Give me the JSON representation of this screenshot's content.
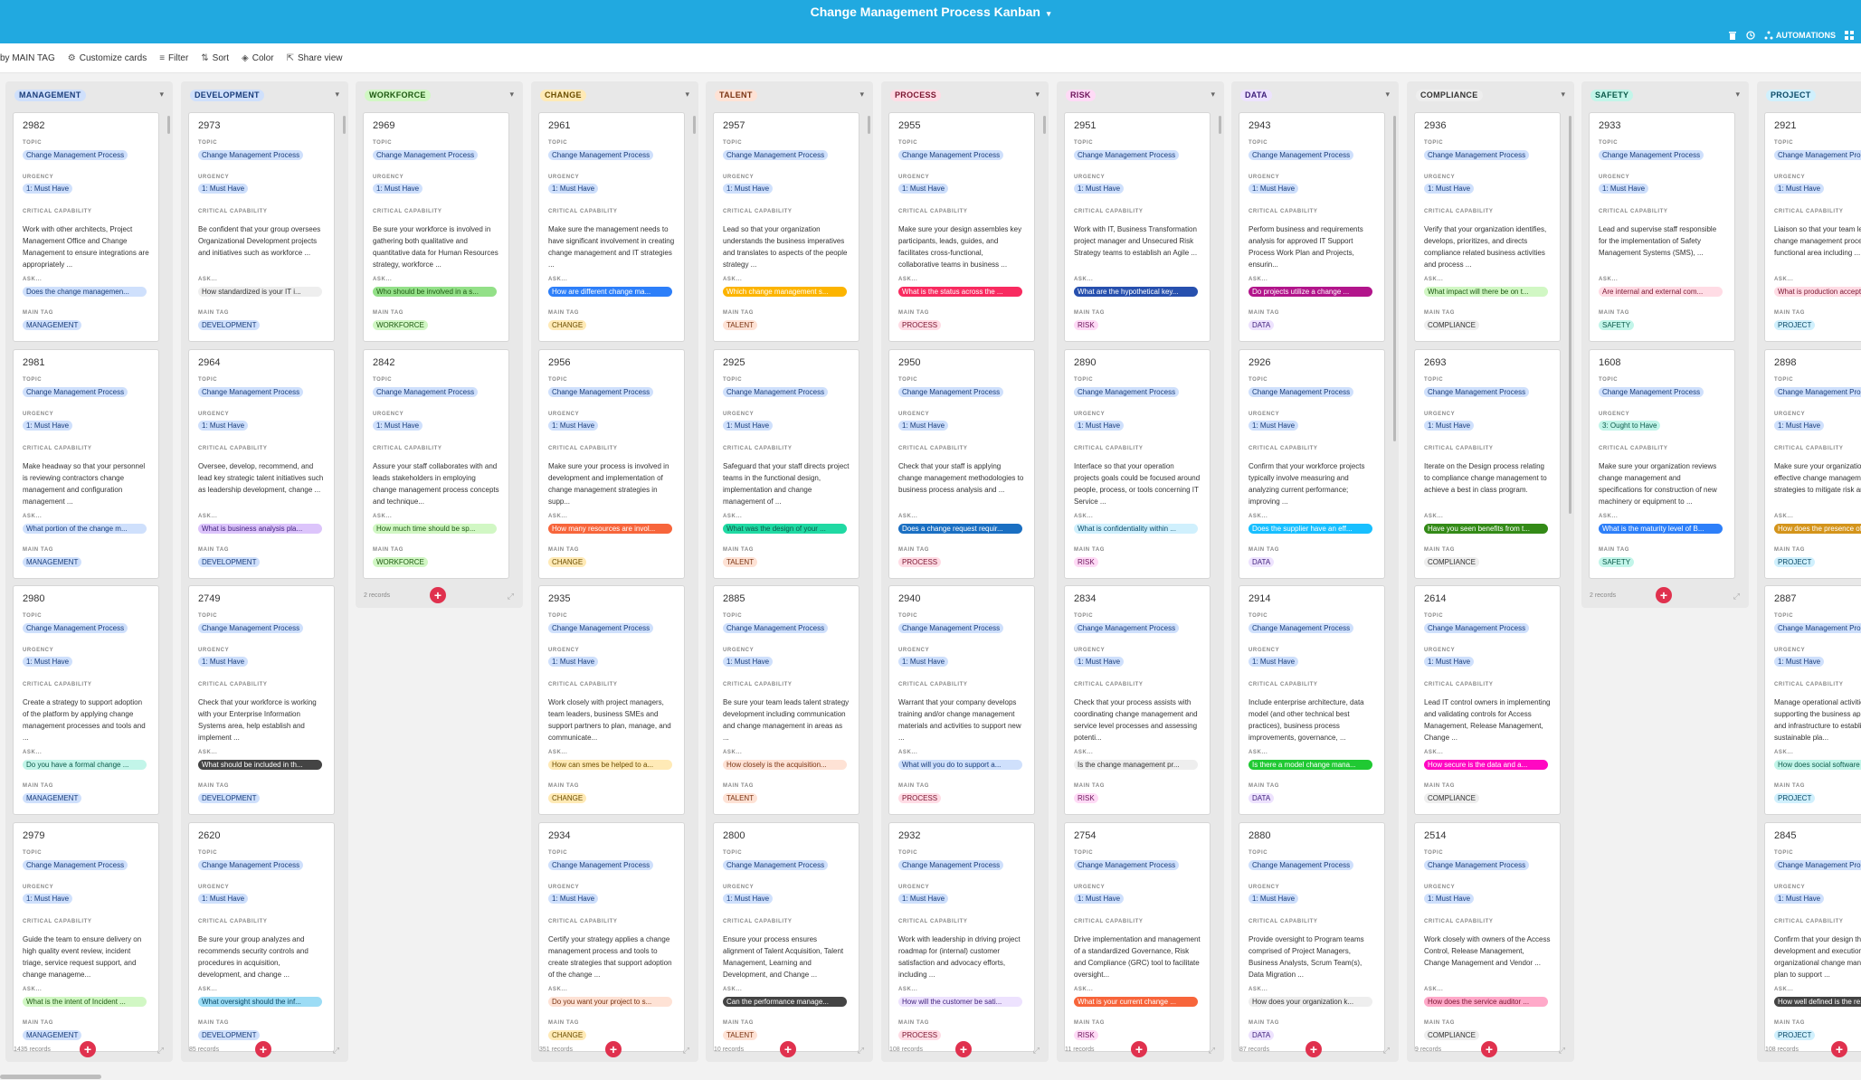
{
  "header": {
    "title": "Change Management Process Kanban",
    "title_caret": "▾",
    "automations_label": "AUTOMATIONS"
  },
  "toolbar": [
    {
      "icon": "group-icon",
      "label": "by MAIN TAG"
    },
    {
      "icon": "settings-icon",
      "label": "Customize cards"
    },
    {
      "icon": "filter-icon",
      "label": "Filter"
    },
    {
      "icon": "sort-icon",
      "label": "Sort"
    },
    {
      "icon": "paint-icon",
      "label": "Color"
    },
    {
      "icon": "share-icon",
      "label": "Share view"
    }
  ],
  "field_labels": {
    "topic": "TOPIC",
    "urgency": "URGENCY",
    "capability": "CRITICAL CAPABILITY",
    "ask": "ASK...",
    "main_tag": "MAIN TAG"
  },
  "colors": {
    "MANAGEMENT": {
      "bg": "#cfe0fc",
      "fg": "#1a3d7a"
    },
    "DEVELOPMENT": {
      "bg": "#cfe0fc",
      "fg": "#1a3d7a"
    },
    "WORKFORCE": {
      "bg": "#d1f7c4",
      "fg": "#1e5a12"
    },
    "CHANGE": {
      "bg": "#ffeab6",
      "fg": "#6b4e00"
    },
    "TALENT": {
      "bg": "#fee2d5",
      "fg": "#7a3413"
    },
    "PROCESS": {
      "bg": "#ffdce5",
      "fg": "#7a1530"
    },
    "RISK": {
      "bg": "#ffdaf6",
      "fg": "#6b1259"
    },
    "DATA": {
      "bg": "#ede2fe",
      "fg": "#3e1f7a"
    },
    "COMPLIANCE": {
      "bg": "#eeeeee",
      "fg": "#333333"
    },
    "SAFETY": {
      "bg": "#c2f5e9",
      "fg": "#0c5a4a"
    },
    "PROJECT": {
      "bg": "#d0f0fd",
      "fg": "#0b4a66"
    }
  },
  "columns": [
    {
      "tag": "MANAGEMENT",
      "records": "1435 records",
      "scroll_top": 0,
      "cards": [
        {
          "num": "2982",
          "topic": "Change Management Process",
          "urgency": "1: Must Have",
          "capability": "Work with other architects, Project Management Office and Change Management to ensure integrations are appropriately ...",
          "ask": "Does the change managemen...",
          "ask_bg": "#cfe0fc",
          "ask_fg": "#1a3d7a",
          "tag": "MANAGEMENT"
        },
        {
          "num": "2981",
          "topic": "Change Management Process",
          "urgency": "1: Must Have",
          "capability": "Make headway so that your personnel is reviewing contractors change management and configuration management ...",
          "ask": "What portion of the change m...",
          "ask_bg": "#cfe0fc",
          "ask_fg": "#1a3d7a",
          "tag": "MANAGEMENT"
        },
        {
          "num": "2980",
          "topic": "Change Management Process",
          "urgency": "1: Must Have",
          "capability": "Create a strategy to support adoption of the platform by applying change management processes and tools and ...",
          "ask": "Do you have a formal change ...",
          "ask_bg": "#c2f5e9",
          "ask_fg": "#0c5a4a",
          "tag": "MANAGEMENT"
        },
        {
          "num": "2979",
          "topic": "Change Management Process",
          "urgency": "1: Must Have",
          "capability": "Guide the team to ensure delivery on high quality event review, incident triage, service request support, and change manageme...",
          "ask": "What is the intent of Incident ...",
          "ask_bg": "#d1f7c4",
          "ask_fg": "#1e5a12",
          "tag": "MANAGEMENT"
        }
      ]
    },
    {
      "tag": "DEVELOPMENT",
      "records": "85 records",
      "scroll_top": 0,
      "cards": [
        {
          "num": "2973",
          "topic": "Change Management Process",
          "urgency": "1: Must Have",
          "capability": "Be confident that your group oversees Organizational Development projects and initiatives such as workforce ...",
          "ask": "How standardized is your IT i...",
          "ask_bg": "#eeeeee",
          "ask_fg": "#333333",
          "tag": "DEVELOPMENT"
        },
        {
          "num": "2964",
          "topic": "Change Management Process",
          "urgency": "1: Must Have",
          "capability": "Oversee, develop, recommend, and lead key strategic talent initiatives such as leadership development, change ...",
          "ask": "What is business analysis pla...",
          "ask_bg": "#dcc4fb",
          "ask_fg": "#3e1f7a",
          "tag": "DEVELOPMENT"
        },
        {
          "num": "2749",
          "topic": "Change Management Process",
          "urgency": "1: Must Have",
          "capability": "Check that your workforce is working with your Enterprise Information Systems area, help establish and implement ...",
          "ask": "What should be included in th...",
          "ask_bg": "#444444",
          "ask_fg": "#ffffff",
          "tag": "DEVELOPMENT"
        },
        {
          "num": "2620",
          "topic": "Change Management Process",
          "urgency": "1: Must Have",
          "capability": "Be sure your group analyzes and recommends security controls and procedures in acquisition, development, and change ...",
          "ask": "What oversight should the inf...",
          "ask_bg": "#9cdcf5",
          "ask_fg": "#0b4a66",
          "tag": "DEVELOPMENT"
        }
      ]
    },
    {
      "tag": "WORKFORCE",
      "records": "2 records",
      "scroll_top": -1,
      "cards": [
        {
          "num": "2969",
          "topic": "Change Management Process",
          "urgency": "1: Must Have",
          "capability": "Be sure your workforce is involved in gathering both qualitative and quantitative data for Human Resources strategy, workforce ...",
          "ask": "Who should be involved in a s...",
          "ask_bg": "#93e088",
          "ask_fg": "#1e5a12",
          "tag": "WORKFORCE"
        },
        {
          "num": "2842",
          "topic": "Change Management Process",
          "urgency": "1: Must Have",
          "capability": "Assure your staff collaborates with and leads stakeholders in employing change management process concepts and technique...",
          "ask": "How much time should be sp...",
          "ask_bg": "#d1f7c4",
          "ask_fg": "#1e5a12",
          "tag": "WORKFORCE"
        }
      ]
    },
    {
      "tag": "CHANGE",
      "records": "351 records",
      "scroll_top": 0,
      "cards": [
        {
          "num": "2961",
          "topic": "Change Management Process",
          "urgency": "1: Must Have",
          "capability": "Make sure the management needs to have significant involvement in creating change management and IT strategies ...",
          "ask": "How are different change ma...",
          "ask_bg": "#2d7ff9",
          "ask_fg": "#ffffff",
          "tag": "CHANGE"
        },
        {
          "num": "2956",
          "topic": "Change Management Process",
          "urgency": "1: Must Have",
          "capability": "Make sure your process is involved in development and implementation of change management strategies in supp...",
          "ask": "How many resources are invol...",
          "ask_bg": "#f7653b",
          "ask_fg": "#ffffff",
          "tag": "CHANGE"
        },
        {
          "num": "2935",
          "topic": "Change Management Process",
          "urgency": "1: Must Have",
          "capability": "Work closely with project managers, team leaders, business SMEs and support partners to plan, manage, and communicate...",
          "ask": "How can smes be helped to a...",
          "ask_bg": "#ffeab6",
          "ask_fg": "#6b4e00",
          "tag": "CHANGE"
        },
        {
          "num": "2934",
          "topic": "Change Management Process",
          "urgency": "1: Must Have",
          "capability": "Certify your strategy applies a change management process and tools to create strategies that support adoption of the change ...",
          "ask": "Do you want your project to s...",
          "ask_bg": "#fee2d5",
          "ask_fg": "#7a3413",
          "tag": "CHANGE"
        }
      ]
    },
    {
      "tag": "TALENT",
      "records": "10 records",
      "scroll_top": 0,
      "cards": [
        {
          "num": "2957",
          "topic": "Change Management Process",
          "urgency": "1: Must Have",
          "capability": "Lead so that your organization understands the business imperatives and translates to aspects of the people strategy ...",
          "ask": "Which change management s...",
          "ask_bg": "#fcb400",
          "ask_fg": "#ffffff",
          "tag": "TALENT"
        },
        {
          "num": "2925",
          "topic": "Change Management Process",
          "urgency": "1: Must Have",
          "capability": "Safeguard that your staff directs project teams in the functional design, implementation and change management of ...",
          "ask": "What was the design of your ...",
          "ask_bg": "#20d9a3",
          "ask_fg": "#0c5a4a",
          "tag": "TALENT"
        },
        {
          "num": "2885",
          "topic": "Change Management Process",
          "urgency": "1: Must Have",
          "capability": "Be sure your team leads talent strategy development including communication and change management in areas as ...",
          "ask": "How closely is the acquisition...",
          "ask_bg": "#fee2d5",
          "ask_fg": "#7a3413",
          "tag": "TALENT"
        },
        {
          "num": "2800",
          "topic": "Change Management Process",
          "urgency": "1: Must Have",
          "capability": "Ensure your process ensures alignment of Talent Acquisition, Talent Management, Learning and Development, and Change ...",
          "ask": "Can the performance manage...",
          "ask_bg": "#444444",
          "ask_fg": "#ffffff",
          "tag": "TALENT"
        }
      ]
    },
    {
      "tag": "PROCESS",
      "records": "108 records",
      "scroll_top": 0,
      "cards": [
        {
          "num": "2955",
          "topic": "Change Management Process",
          "urgency": "1: Must Have",
          "capability": "Make sure your design assembles key participants, leads, guides, and facilitates cross-functional, collaborative teams in business ...",
          "ask": "What is the status across the ...",
          "ask_bg": "#f82b60",
          "ask_fg": "#ffffff",
          "tag": "PROCESS"
        },
        {
          "num": "2950",
          "topic": "Change Management Process",
          "urgency": "1: Must Have",
          "capability": "Check that your staff is applying change management methodologies to business process analysis and ...",
          "ask": "Does a change request requir...",
          "ask_bg": "#1a6fc2",
          "ask_fg": "#ffffff",
          "tag": "PROCESS"
        },
        {
          "num": "2940",
          "topic": "Change Management Process",
          "urgency": "1: Must Have",
          "capability": "Warrant that your company develops training and/or change management materials and activities to support new ...",
          "ask": "What will you do to support a...",
          "ask_bg": "#cfe0fc",
          "ask_fg": "#1a3d7a",
          "tag": "PROCESS"
        },
        {
          "num": "2932",
          "topic": "Change Management Process",
          "urgency": "1: Must Have",
          "capability": "Work with leadership in driving project roadmap for (internal) customer satisfaction and advocacy efforts, including ...",
          "ask": "How will the customer be sati...",
          "ask_bg": "#ede2fe",
          "ask_fg": "#3e1f7a",
          "tag": "PROCESS"
        }
      ]
    },
    {
      "tag": "RISK",
      "records": "11 records",
      "scroll_top": 0,
      "cards": [
        {
          "num": "2951",
          "topic": "Change Management Process",
          "urgency": "1: Must Have",
          "capability": "Work with IT, Business Transformation project manager and Unsecured Risk Strategy teams to establish an Agile ...",
          "ask": "What are the hypothetical key...",
          "ask_bg": "#2750ae",
          "ask_fg": "#ffffff",
          "tag": "RISK"
        },
        {
          "num": "2890",
          "topic": "Change Management Process",
          "urgency": "1: Must Have",
          "capability": "Interface so that your operation projects goals could be focused around people, process, or tools concerning IT Service ...",
          "ask": "What is confidentiality within ...",
          "ask_bg": "#d0f0fd",
          "ask_fg": "#0b4a66",
          "tag": "RISK"
        },
        {
          "num": "2834",
          "topic": "Change Management Process",
          "urgency": "1: Must Have",
          "capability": "Check that your process assists with coordinating change management and service level processes and assessing potenti...",
          "ask": "Is the change management pr...",
          "ask_bg": "#eeeeee",
          "ask_fg": "#333333",
          "tag": "RISK"
        },
        {
          "num": "2754",
          "topic": "Change Management Process",
          "urgency": "1: Must Have",
          "capability": "Drive implementation and management of a standardized Governance, Risk and Compliance (GRC) tool to facilitate oversight...",
          "ask": "What is your current change ...",
          "ask_bg": "#f7653b",
          "ask_fg": "#ffffff",
          "tag": "RISK"
        }
      ]
    },
    {
      "tag": "DATA",
      "records": "87 records",
      "scroll_top": 0,
      "cards": [
        {
          "num": "2943",
          "topic": "Change Management Process",
          "urgency": "1: Must Have",
          "capability": "Perform business and requirements analysis for approved IT Support Process Work Plan and Projects, ensurin...",
          "ask": "Do projects utilize a change ...",
          "ask_bg": "#b2158b",
          "ask_fg": "#ffffff",
          "tag": "DATA"
        },
        {
          "num": "2926",
          "topic": "Change Management Process",
          "urgency": "1: Must Have",
          "capability": "Confirm that your workforce projects typically involve measuring and analyzing current performance; improving ...",
          "ask": "Does the supplier have an eff...",
          "ask_bg": "#18bfff",
          "ask_fg": "#ffffff",
          "tag": "DATA"
        },
        {
          "num": "2914",
          "topic": "Change Management Process",
          "urgency": "1: Must Have",
          "capability": "Include enterprise architecture, data model (and other technical best practices), business process improvements, governance, ...",
          "ask": "Is there a model change mana...",
          "ask_bg": "#20c933",
          "ask_fg": "#ffffff",
          "tag": "DATA"
        },
        {
          "num": "2880",
          "topic": "Change Management Process",
          "urgency": "1: Must Have",
          "capability": "Provide oversight to Program teams comprised of Project Managers, Business Analysts, Scrum Team(s), Data Migration ...",
          "ask": "How does your organization k...",
          "ask_bg": "#eeeeee",
          "ask_fg": "#333333",
          "tag": "DATA"
        }
      ]
    },
    {
      "tag": "COMPLIANCE",
      "records": "9 records",
      "scroll_top": 0,
      "cards": [
        {
          "num": "2936",
          "topic": "Change Management Process",
          "urgency": "1: Must Have",
          "capability": "Verify that your organization identifies, develops, prioritizes, and directs compliance related business activities and process ...",
          "ask": "What impact will there be on t...",
          "ask_bg": "#d1f7c4",
          "ask_fg": "#1e5a12",
          "tag": "COMPLIANCE"
        },
        {
          "num": "2693",
          "topic": "Change Management Process",
          "urgency": "1: Must Have",
          "capability": "Iterate on the Design process relating to compliance change management to achieve a best in class program.",
          "ask": "Have you seen benefits from t...",
          "ask_bg": "#338a17",
          "ask_fg": "#ffffff",
          "tag": "COMPLIANCE"
        },
        {
          "num": "2614",
          "topic": "Change Management Process",
          "urgency": "1: Must Have",
          "capability": "Lead IT control owners in implementing and validating controls for Access Management, Release Management, Change ...",
          "ask": "How secure is the data and a...",
          "ask_bg": "#ff08c2",
          "ask_fg": "#ffffff",
          "tag": "COMPLIANCE"
        },
        {
          "num": "2514",
          "topic": "Change Management Process",
          "urgency": "1: Must Have",
          "capability": "Work closely with owners of the Access Control, Release Management, Change Management and Vendor ...",
          "ask": "How does the service auditor ...",
          "ask_bg": "#ffa9c9",
          "ask_fg": "#7a1530",
          "tag": "COMPLIANCE"
        }
      ]
    },
    {
      "tag": "SAFETY",
      "records": "2 records",
      "scroll_top": -1,
      "cards": [
        {
          "num": "2933",
          "topic": "Change Management Process",
          "urgency": "1: Must Have",
          "capability": "Lead and supervise staff responsible for the implementation of Safety Management Systems (SMS), ...",
          "ask": "Are internal and external com...",
          "ask_bg": "#ffdce5",
          "ask_fg": "#7a1530",
          "tag": "SAFETY"
        },
        {
          "num": "1608",
          "topic": "Change Management Process",
          "urgency": "3: Ought to Have",
          "urgency_bg": "#c2f5e9",
          "urgency_fg": "#0c5a4a",
          "capability": "Make sure your organization reviews change management and specifications for construction of new machinery or equipment to ...",
          "ask": "What is the maturity level of B...",
          "ask_bg": "#2d7ff9",
          "ask_fg": "#ffffff",
          "tag": "SAFETY"
        }
      ]
    },
    {
      "tag": "PROJECT",
      "records": "108 records",
      "scroll_top": -1,
      "cards": [
        {
          "num": "2921",
          "topic": "Change Management Process",
          "urgency": "1: Must Have",
          "capability": "Liaison so that your team leading the IT change management process for functional area including ...",
          "ask": "What is production accept...",
          "ask_bg": "#ffdce5",
          "ask_fg": "#7a1530",
          "tag": "PROJECT"
        },
        {
          "num": "2898",
          "topic": "Change Management Process",
          "urgency": "1: Must Have",
          "capability": "Make sure your organization develops effective change management strategies to mitigate risk and ensure ...",
          "ask": "How does the presence of ...",
          "ask_bg": "#d4941b",
          "ask_fg": "#ffffff",
          "tag": "PROJECT"
        },
        {
          "num": "2887",
          "topic": "Change Management Process",
          "urgency": "1: Must Have",
          "capability": "Manage operational activities supporting the business applications and infrastructure to establish sustainable pla...",
          "ask": "How does social software ...",
          "ask_bg": "#c2f5e9",
          "ask_fg": "#0c5a4a",
          "tag": "PROJECT"
        },
        {
          "num": "2845",
          "topic": "Change Management Process",
          "urgency": "1: Must Have",
          "capability": "Confirm that your design the development and execution organizational change management plan to support ...",
          "ask": "How well defined is the re...",
          "ask_bg": "#444444",
          "ask_fg": "#ffffff",
          "tag": "PROJECT"
        }
      ]
    }
  ]
}
